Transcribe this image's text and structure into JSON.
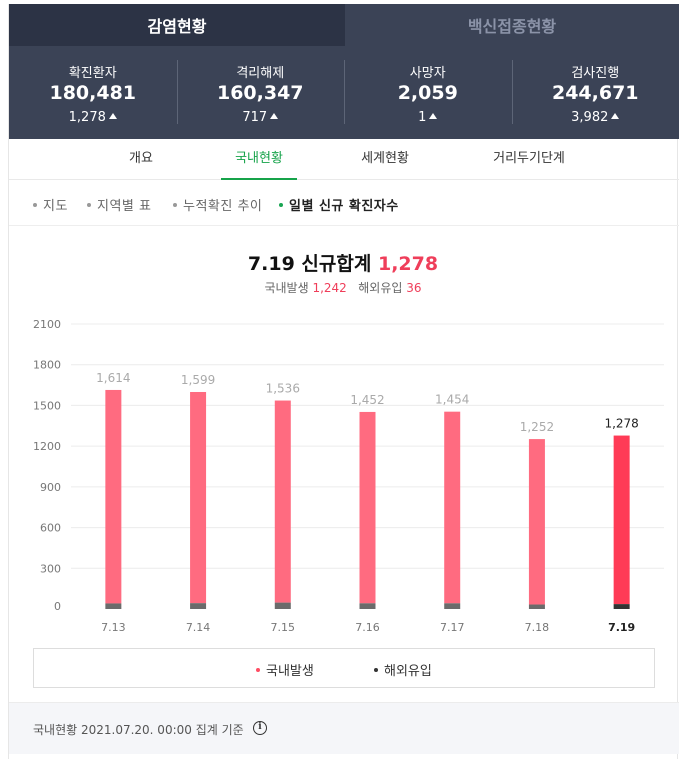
{
  "top_tabs": {
    "active": "감염현황",
    "inactive": "백신접종현황"
  },
  "stats": [
    {
      "label": "확진환자",
      "value": "180,481",
      "delta": "1,278"
    },
    {
      "label": "격리해제",
      "value": "160,347",
      "delta": "717"
    },
    {
      "label": "사망자",
      "value": "2,059",
      "delta": "1"
    },
    {
      "label": "검사진행",
      "value": "244,671",
      "delta": "3,982"
    }
  ],
  "sub_tabs": [
    "개요",
    "국내현황",
    "세계현황",
    "거리두기단계"
  ],
  "sub_tab_active": "국내현황",
  "views": [
    "지도",
    "지역별 표",
    "누적확진 추이",
    "일별 신규 확진자수"
  ],
  "view_active": "일별 신규 확진자수",
  "chart_header": {
    "date": "7.19",
    "title_text": "신규합계",
    "total": "1,278",
    "domestic_label": "국내발생",
    "domestic_value": "1,242",
    "overseas_label": "해외유입",
    "overseas_value": "36"
  },
  "chart_data": {
    "type": "bar",
    "categories": [
      "7.13",
      "7.14",
      "7.15",
      "7.16",
      "7.17",
      "7.18",
      "7.19"
    ],
    "totals": [
      1614,
      1599,
      1536,
      1452,
      1454,
      1252,
      1278
    ],
    "total_labels": [
      "1,614",
      "1,599",
      "1,536",
      "1,452",
      "1,454",
      "1,252",
      "1,278"
    ],
    "series": [
      {
        "name": "국내발생",
        "values": [
          1573,
          1556,
          1489,
          1410,
          1412,
          1219,
          1242
        ]
      },
      {
        "name": "해외유입",
        "values": [
          41,
          43,
          47,
          42,
          42,
          33,
          36
        ]
      }
    ],
    "y_ticks": [
      0,
      300,
      600,
      900,
      1200,
      1500,
      1800,
      2100
    ],
    "ylim": [
      0,
      2100
    ],
    "grid": true,
    "legend": "bottom",
    "highlight_category": "7.19",
    "colors": {
      "domestic": "#ff6b80",
      "domestic_highlight": "#ff3b56",
      "overseas": "#6b6b6b",
      "overseas_highlight": "#333333",
      "label_muted": "#aaaaaa",
      "label_highlight": "#222222"
    }
  },
  "legend": [
    {
      "label": "국내발생",
      "color": "#ff4d63"
    },
    {
      "label": "해외유입",
      "color": "#333333"
    }
  ],
  "footer": {
    "text": "국내현황 2021.07.20. 00:00 집계 기준",
    "info_icon": "info-icon"
  }
}
